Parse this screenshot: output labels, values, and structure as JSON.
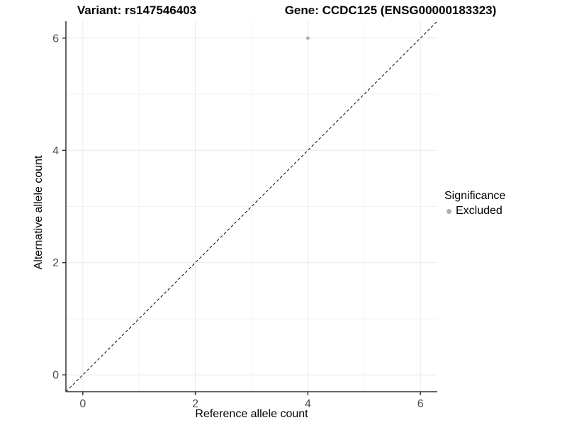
{
  "chart_data": {
    "type": "scatter",
    "title_left": "Variant: rs147546403",
    "title_right": "Gene: CCDC125 (ENSG00000183323)",
    "xlabel": "Reference allele count",
    "ylabel": "Alternative allele count",
    "xlim": [
      -0.3,
      6.3
    ],
    "ylim": [
      -0.3,
      6.3
    ],
    "xticks": [
      0,
      2,
      4,
      6
    ],
    "yticks": [
      0,
      2,
      4,
      6
    ],
    "grid": {
      "major": [
        0,
        2,
        4,
        6
      ],
      "minor": [
        1,
        3,
        5
      ]
    },
    "points": [
      {
        "x": 4,
        "y": 6,
        "series": "Excluded"
      }
    ],
    "identity_line": {
      "style": "dashed",
      "from": [
        -0.3,
        -0.3
      ],
      "to": [
        6.3,
        6.3
      ]
    },
    "legend": {
      "title": "Significance",
      "position": "right",
      "entries": [
        {
          "label": "Excluded",
          "color": "#b0b0b0"
        }
      ]
    },
    "colors": {
      "point": "#b0b0b0",
      "axis": "#333333",
      "tick_label": "#4d4d4d",
      "grid_major": "#e8e8e8",
      "grid_minor": "#f2f2f2",
      "identity_line": "#000000"
    },
    "point_radius": 2.5
  }
}
